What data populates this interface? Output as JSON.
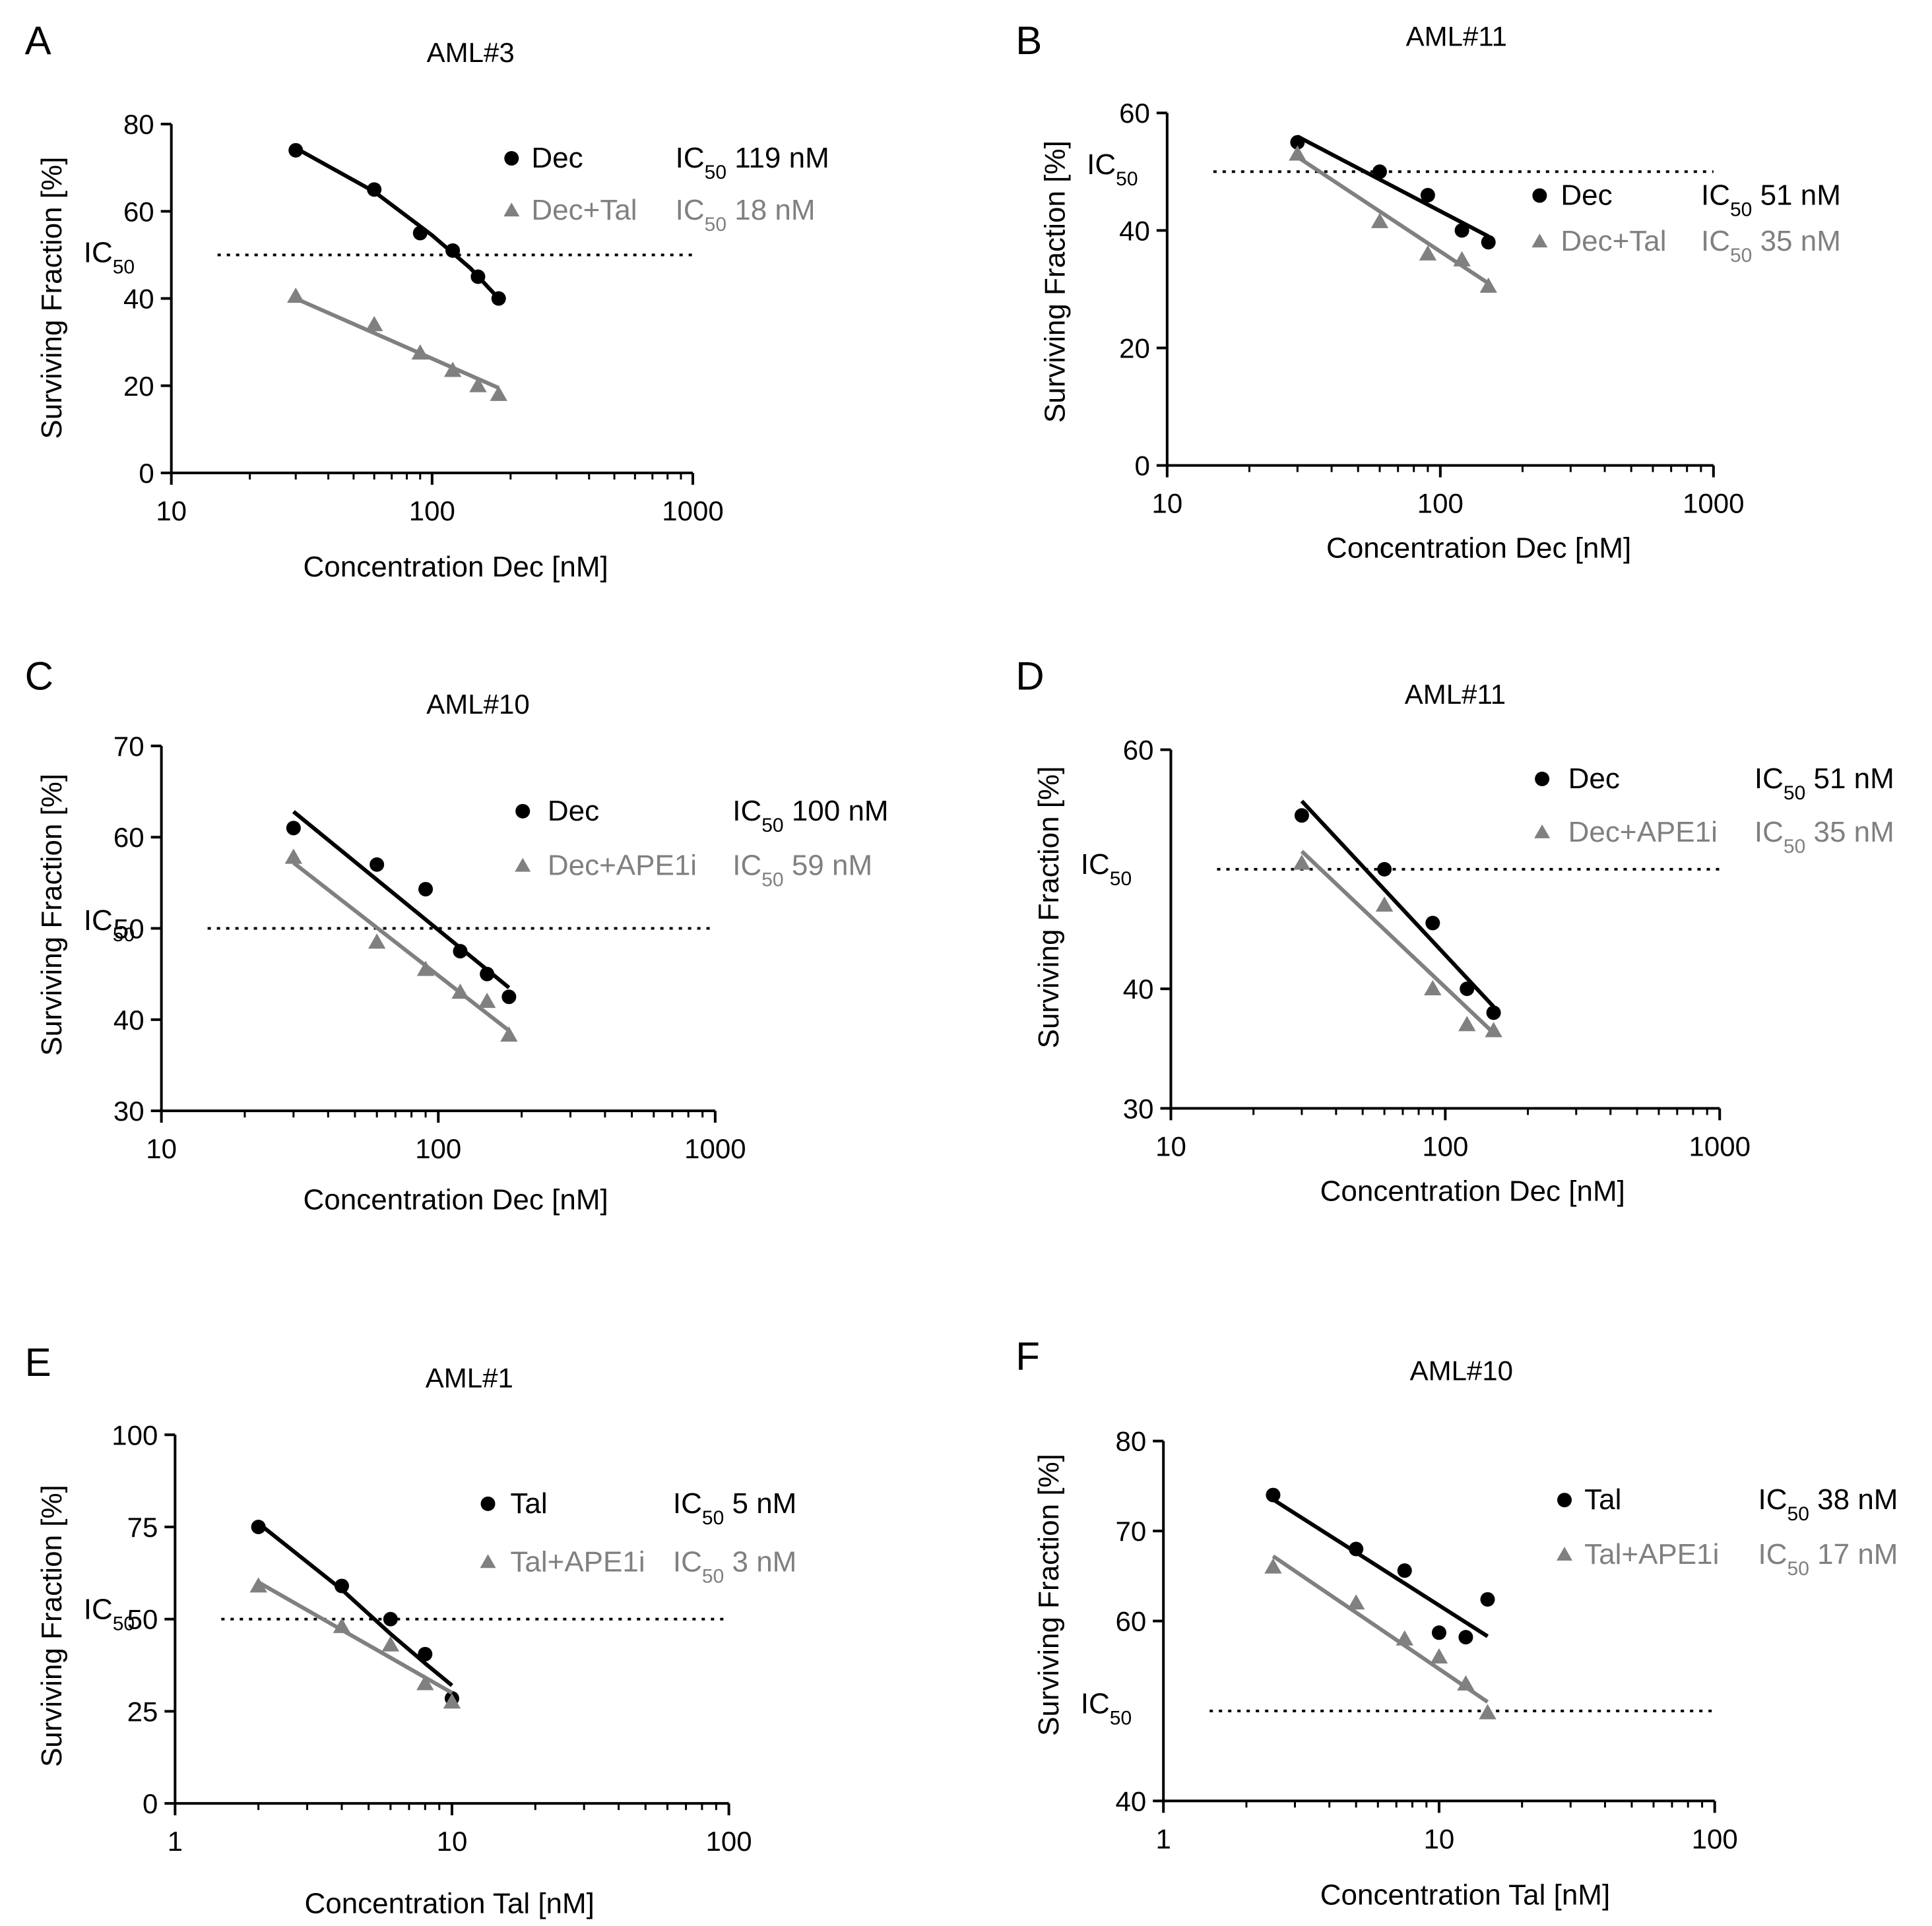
{
  "chart_data": [
    {
      "type": "scatter",
      "panel": "A",
      "title": "AML#3",
      "xlabel": "Concentration Dec [nM]",
      "ylabel": "Surviving Fraction [%]",
      "xscale": "log",
      "xlim": [
        10,
        1000
      ],
      "ylim": [
        0,
        80
      ],
      "yticks": [
        0,
        20,
        40,
        60,
        80
      ],
      "xticks": [
        10,
        100,
        1000
      ],
      "ic50_line": 50,
      "ic50_label": "IC",
      "ic50_sub": "50",
      "legend_position": "upper-right",
      "colors": {
        "primary": "#000000",
        "secondary": "#808080"
      },
      "series": [
        {
          "name": "Dec",
          "marker": "circle",
          "ic50_prefix": "IC",
          "ic50_sub": "50",
          "ic50_value": "119 nM",
          "x": [
            30,
            60,
            90,
            120,
            150,
            180
          ],
          "y": [
            74,
            65,
            55,
            51,
            45,
            40
          ],
          "fit": [
            [
              30,
              74.5
            ],
            [
              60,
              64.5
            ],
            [
              100,
              54.5
            ],
            [
              140,
              47
            ],
            [
              180,
              40
            ]
          ]
        },
        {
          "name": "Dec+Tal",
          "marker": "triangle",
          "ic50_prefix": "IC",
          "ic50_sub": "50",
          "ic50_value": "18 nM",
          "x": [
            30,
            60,
            90,
            120,
            150,
            180
          ],
          "y": [
            40.5,
            34,
            27.5,
            23.5,
            20,
            18
          ],
          "fit": [
            [
              30,
              40
            ],
            [
              180,
              19.5
            ]
          ]
        }
      ]
    },
    {
      "type": "scatter",
      "panel": "B",
      "title": "AML#11",
      "xlabel": "Concentration Dec [nM]",
      "ylabel": "Surviving Fraction [%]",
      "xscale": "log",
      "xlim": [
        10,
        1000
      ],
      "ylim": [
        0,
        60
      ],
      "yticks": [
        0,
        20,
        40,
        60
      ],
      "xticks": [
        10,
        100,
        1000
      ],
      "ic50_line": 50,
      "ic50_label": "IC",
      "ic50_sub": "50",
      "legend_position": "right",
      "colors": {
        "primary": "#000000",
        "secondary": "#808080"
      },
      "series": [
        {
          "name": "Dec",
          "marker": "circle",
          "ic50_prefix": "IC",
          "ic50_sub": "50",
          "ic50_value": "51 nM",
          "x": [
            30,
            60,
            90,
            120,
            150
          ],
          "y": [
            55,
            50,
            46,
            40,
            38
          ],
          "fit": [
            [
              30,
              56
            ],
            [
              150,
              39
            ]
          ]
        },
        {
          "name": "Dec+Tal",
          "marker": "triangle",
          "ic50_prefix": "IC",
          "ic50_sub": "50",
          "ic50_value": "35 nM",
          "x": [
            30,
            60,
            90,
            120,
            150
          ],
          "y": [
            53,
            41.5,
            36,
            35,
            30.5
          ],
          "fit": [
            [
              30,
              52.5
            ],
            [
              150,
              31
            ]
          ]
        }
      ]
    },
    {
      "type": "scatter",
      "panel": "C",
      "title": "AML#10",
      "xlabel": "Concentration Dec [nM]",
      "ylabel": "Surviving Fraction [%]",
      "xscale": "log",
      "xlim": [
        10,
        1000
      ],
      "ylim": [
        30,
        70
      ],
      "yticks": [
        30,
        40,
        50,
        60,
        70
      ],
      "xticks": [
        10,
        100,
        1000
      ],
      "ic50_line": 50,
      "ic50_label": "IC",
      "ic50_sub": "50",
      "legend_position": "upper-right",
      "colors": {
        "primary": "#000000",
        "secondary": "#808080"
      },
      "series": [
        {
          "name": "Dec",
          "marker": "circle",
          "ic50_prefix": "IC",
          "ic50_sub": "50",
          "ic50_value": "100 nM",
          "x": [
            30,
            60,
            90,
            120,
            150,
            180
          ],
          "y": [
            61,
            57,
            54.3,
            47.5,
            45,
            42.5
          ],
          "fit": [
            [
              30,
              62.8
            ],
            [
              180,
              43.5
            ]
          ]
        },
        {
          "name": "Dec+APE1i",
          "marker": "triangle",
          "ic50_prefix": "IC",
          "ic50_sub": "50",
          "ic50_value": "59 nM",
          "x": [
            30,
            60,
            90,
            120,
            150,
            180
          ],
          "y": [
            57.8,
            48.5,
            45.5,
            43,
            42,
            38.3
          ],
          "fit": [
            [
              30,
              57.2
            ],
            [
              180,
              38.8
            ]
          ]
        }
      ]
    },
    {
      "type": "scatter",
      "panel": "D",
      "title": "AML#11",
      "xlabel": "Concentration Dec [nM]",
      "ylabel": "Surviving Fraction [%]",
      "xscale": "log",
      "xlim": [
        10,
        1000
      ],
      "ylim": [
        30,
        60
      ],
      "yticks": [
        30,
        40,
        60
      ],
      "xticks": [
        10,
        100,
        1000
      ],
      "ic50_line": 50,
      "ic50_label": "IC",
      "ic50_sub": "50",
      "legend_position": "upper-right",
      "colors": {
        "primary": "#000000",
        "secondary": "#808080"
      },
      "series": [
        {
          "name": "Dec",
          "marker": "circle",
          "ic50_prefix": "IC",
          "ic50_sub": "50",
          "ic50_value": "51 nM",
          "x": [
            30,
            60,
            90,
            120,
            150
          ],
          "y": [
            54.5,
            50,
            45.5,
            40,
            38
          ],
          "fit": [
            [
              30,
              55.7
            ],
            [
              150,
              38.5
            ]
          ]
        },
        {
          "name": "Dec+APE1i",
          "marker": "triangle",
          "ic50_prefix": "IC",
          "ic50_sub": "50",
          "ic50_value": "35 nM",
          "x": [
            30,
            60,
            90,
            120,
            150
          ],
          "y": [
            50.5,
            47,
            40,
            37,
            36.5
          ],
          "fit": [
            [
              30,
              51.5
            ],
            [
              150,
              36.3
            ]
          ]
        }
      ]
    },
    {
      "type": "scatter",
      "panel": "E",
      "title": "AML#1",
      "xlabel": "Concentration Tal [nM]",
      "ylabel": "Surviving Fraction [%]",
      "xscale": "log",
      "xlim": [
        1,
        100
      ],
      "ylim": [
        0,
        100
      ],
      "yticks": [
        0,
        25,
        50,
        75,
        100
      ],
      "xticks": [
        1,
        10,
        100
      ],
      "ic50_line": 50,
      "ic50_label": "IC",
      "ic50_sub": "50",
      "legend_position": "upper-right",
      "colors": {
        "primary": "#000000",
        "secondary": "#808080"
      },
      "series": [
        {
          "name": "Tal",
          "marker": "circle",
          "ic50_prefix": "IC",
          "ic50_sub": "50",
          "ic50_value": "5 nM",
          "x": [
            2,
            4,
            6,
            8,
            10
          ],
          "y": [
            75,
            59,
            50,
            40.5,
            28.5
          ],
          "fit": [
            [
              2,
              76
            ],
            [
              4,
              58
            ],
            [
              6,
              46
            ],
            [
              8,
              38
            ],
            [
              10,
              32
            ]
          ]
        },
        {
          "name": "Tal+APE1i",
          "marker": "triangle",
          "ic50_prefix": "IC",
          "ic50_sub": "50",
          "ic50_value": "3 nM",
          "x": [
            2,
            4,
            6,
            8,
            10
          ],
          "y": [
            59,
            48,
            43,
            32.5,
            27.5
          ],
          "fit": [
            [
              2,
              60
            ],
            [
              10,
              30
            ]
          ]
        }
      ]
    },
    {
      "type": "scatter",
      "panel": "F",
      "title": "AML#10",
      "xlabel": "Concentration Tal [nM]",
      "ylabel": "Surviving Fraction [%]",
      "xscale": "log",
      "xlim": [
        1,
        100
      ],
      "ylim": [
        40,
        80
      ],
      "yticks": [
        40,
        60,
        70,
        80
      ],
      "xticks": [
        1,
        10,
        100
      ],
      "ic50_line": 50,
      "ic50_label": "IC",
      "ic50_sub": "50",
      "legend_position": "upper-right",
      "colors": {
        "primary": "#000000",
        "secondary": "#808080"
      },
      "series": [
        {
          "name": "Tal",
          "marker": "circle",
          "ic50_prefix": "IC",
          "ic50_sub": "50",
          "ic50_value": "38 nM",
          "x": [
            2.5,
            5,
            7.5,
            10,
            12.5,
            15
          ],
          "y": [
            74,
            68,
            65.6,
            58.7,
            58.2,
            62.4
          ],
          "fit": [
            [
              2.5,
              73.5
            ],
            [
              15,
              58.3
            ]
          ]
        },
        {
          "name": "Tal+APE1i",
          "marker": "triangle",
          "ic50_prefix": "IC",
          "ic50_sub": "50",
          "ic50_value": "17 nM",
          "x": [
            2.5,
            5,
            7.5,
            10,
            12.5,
            15
          ],
          "y": [
            66,
            62,
            58,
            56,
            53,
            49.8
          ],
          "fit": [
            [
              2.5,
              67.2
            ],
            [
              15,
              51
            ]
          ]
        }
      ]
    }
  ]
}
